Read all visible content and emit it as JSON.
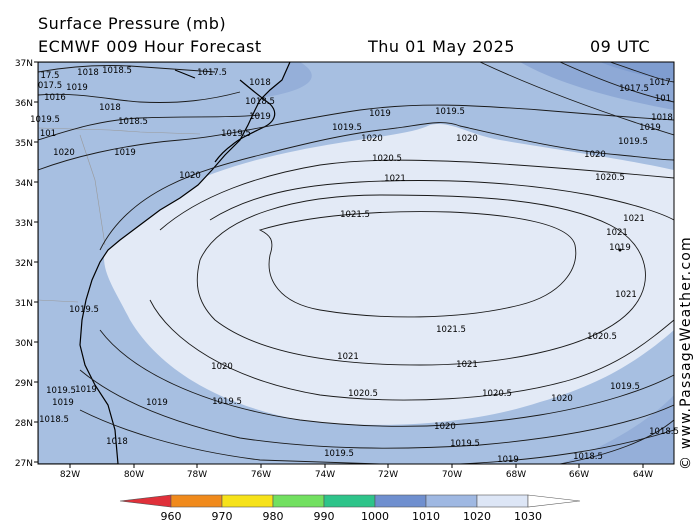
{
  "header": {
    "title": "Surface Pressure (mb)",
    "model": "ECMWF 009 Hour Forecast",
    "date": "Thu 01 May 2025",
    "time": "09 UTC"
  },
  "credit": "© www.PassageWeather.com",
  "map": {
    "lat_labels": [
      "37N",
      "36N",
      "35N",
      "34N",
      "33N",
      "32N",
      "31N",
      "30N",
      "29N",
      "28N",
      "27N"
    ],
    "lon_labels": [
      "82W",
      "80W",
      "78W",
      "76W",
      "74W",
      "72W",
      "70W",
      "68W",
      "66W",
      "64W"
    ],
    "extent": {
      "lat": [
        27,
        37
      ],
      "lon": [
        -83,
        -63
      ]
    },
    "contour_labels": [
      {
        "text": "17.5"
      },
      {
        "text": "1018"
      },
      {
        "text": "1018.5"
      },
      {
        "text": "1017.5"
      },
      {
        "text": "1018"
      },
      {
        "text": "017.5"
      },
      {
        "text": "1019"
      },
      {
        "text": "1018.5"
      },
      {
        "text": "1018"
      },
      {
        "text": "1019"
      },
      {
        "text": "1016"
      },
      {
        "text": "1018.5"
      },
      {
        "text": "1019.5"
      },
      {
        "text": "1019"
      },
      {
        "text": "1019.5"
      },
      {
        "text": "1019"
      },
      {
        "text": "1020"
      },
      {
        "text": "1020"
      },
      {
        "text": "1020.5"
      },
      {
        "text": "1021"
      },
      {
        "text": "1021.5"
      },
      {
        "text": "1020"
      },
      {
        "text": "1019.5"
      },
      {
        "text": "1021"
      },
      {
        "text": "1021.5"
      },
      {
        "text": "1021"
      },
      {
        "text": "1020"
      },
      {
        "text": "1020.5"
      },
      {
        "text": "1020.5"
      },
      {
        "text": "1020"
      },
      {
        "text": "1019.5"
      },
      {
        "text": "1019"
      },
      {
        "text": "1019"
      },
      {
        "text": "1019.5"
      },
      {
        "text": "1019.5"
      },
      {
        "text": "1020"
      },
      {
        "text": "1019.5"
      },
      {
        "text": "1019.5"
      },
      {
        "text": "1019"
      },
      {
        "text": "1018.5"
      },
      {
        "text": "1018.5"
      },
      {
        "text": "1018"
      },
      {
        "text": "1018.5"
      },
      {
        "text": "1017"
      },
      {
        "text": "1017.5"
      },
      {
        "text": "101"
      },
      {
        "text": "1018"
      },
      {
        "text": "1019"
      },
      {
        "text": "1019.5"
      },
      {
        "text": "1020"
      },
      {
        "text": "1020.5"
      },
      {
        "text": "1021"
      },
      {
        "text": "1021"
      },
      {
        "text": "1020.5"
      },
      {
        "text": "1020"
      },
      {
        "text": "1019.5"
      },
      {
        "text": "101"
      },
      {
        "text": "1019.5"
      },
      {
        "text": "1021"
      },
      {
        "text": "1019"
      },
      {
        "text": "1019"
      }
    ]
  },
  "colorbar": {
    "labels": [
      "960",
      "970",
      "980",
      "990",
      "1000",
      "1010",
      "1020",
      "1030"
    ],
    "colors": [
      "#e0303a",
      "#f08a1c",
      "#f6e21a",
      "#72e060",
      "#2ec48a",
      "#6f8fcf",
      "#9fb8e2",
      "#dde6f6"
    ]
  },
  "colors": {
    "ocean_base": "#a7bfe1",
    "ocean_outer": "#92acd8",
    "high_core": "#e3eaf6",
    "land": "#a7bfe1"
  }
}
